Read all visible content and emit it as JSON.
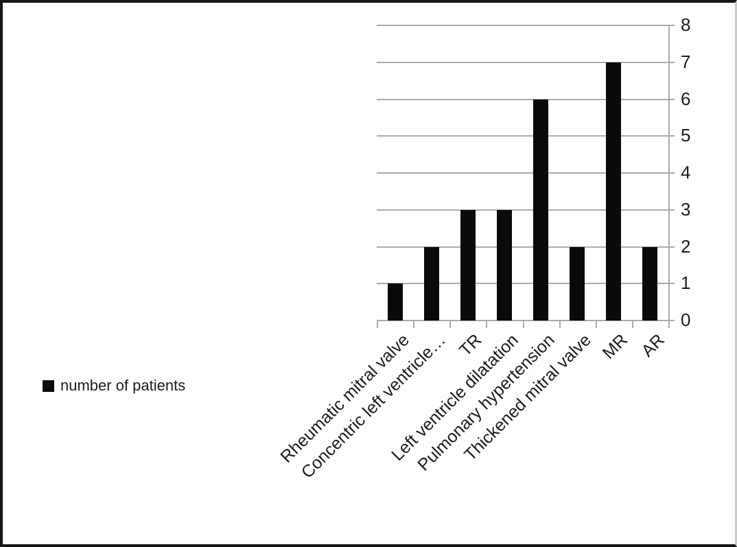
{
  "chart_data": {
    "type": "bar",
    "title": "",
    "xlabel": "",
    "ylabel": "",
    "categories": [
      "Rheumatic mitral valve",
      "Concentric left ventricle…",
      "TR",
      "Left ventricle dilatation",
      "Pulmonary hypertension",
      "Thickened mitral valve",
      "MR",
      "AR"
    ],
    "series": [
      {
        "name": "number of patients",
        "values": [
          1,
          2,
          3,
          3,
          6,
          2,
          7,
          2
        ]
      }
    ],
    "ylim": [
      0,
      8
    ],
    "ytick_labels": [
      "0",
      "1",
      "2",
      "3",
      "4",
      "5",
      "6",
      "7",
      "8"
    ],
    "y_axis_side": "right",
    "grid": "horizontal",
    "legend_position": "bottom-left",
    "bar_color": "#0a0a0a",
    "gridline_color": "#a5aeae",
    "text_color": "#1c1c1c"
  },
  "legend": {
    "marker_icon": "black-square-icon",
    "label": "number of patients"
  }
}
